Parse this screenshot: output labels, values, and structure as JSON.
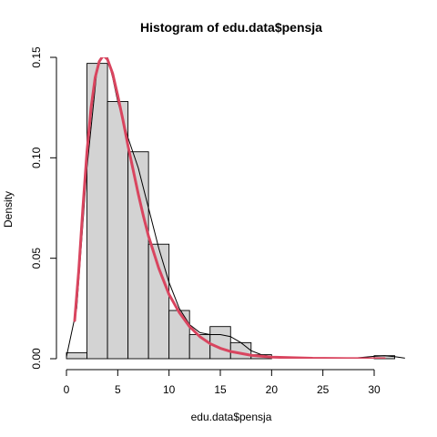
{
  "chart_data": {
    "type": "histogram",
    "title": "Histogram of edu.data$pensja",
    "xlabel": "edu.data$pensja",
    "ylabel": "Density",
    "xlim": [
      0,
      32
    ],
    "ylim": [
      0,
      0.15
    ],
    "x_ticks": [
      0,
      5,
      10,
      15,
      20,
      25,
      30
    ],
    "y_ticks": [
      0.0,
      0.05,
      0.1,
      0.15
    ],
    "x_tick_labels": [
      "0",
      "5",
      "10",
      "15",
      "20",
      "25",
      "30"
    ],
    "y_tick_labels": [
      "0.00",
      "0.05",
      "0.10",
      "0.15"
    ],
    "bin_edges": [
      0,
      2,
      4,
      6,
      8,
      10,
      12,
      14,
      16,
      18,
      20,
      22,
      24,
      26,
      28,
      30,
      32
    ],
    "densities": [
      0.003,
      0.147,
      0.128,
      0.103,
      0.057,
      0.024,
      0.012,
      0.016,
      0.008,
      0.002,
      0,
      0,
      0,
      0,
      0,
      0.0015,
      0
    ],
    "bar_fill": "#d3d3d3",
    "bar_stroke": "#000000",
    "density_curve": {
      "color": "#000000",
      "x": [
        0,
        1,
        2,
        3,
        3.5,
        4,
        4.5,
        5,
        6,
        7,
        8,
        9,
        10,
        11,
        12,
        13,
        14,
        15,
        16,
        17,
        18,
        19,
        20,
        22,
        24,
        26,
        28,
        30,
        31,
        32,
        33
      ],
      "y": [
        0.001,
        0.025,
        0.095,
        0.145,
        0.152,
        0.15,
        0.14,
        0.128,
        0.11,
        0.095,
        0.075,
        0.055,
        0.038,
        0.025,
        0.017,
        0.013,
        0.012,
        0.012,
        0.011,
        0.008,
        0.004,
        0.002,
        0.001,
        0.0005,
        0.0003,
        0.0002,
        0.0003,
        0.0012,
        0.0015,
        0.001,
        0.0003
      ]
    },
    "fitted_curve": {
      "color": "#d9455f",
      "x": [
        0.8,
        1.2,
        1.6,
        2,
        2.4,
        2.8,
        3.2,
        3.6,
        4,
        4.5,
        5,
        5.5,
        6,
        6.5,
        7,
        7.5,
        8,
        9,
        10,
        11,
        12,
        13,
        14,
        15,
        16,
        18,
        20,
        24,
        28,
        31
      ],
      "y": [
        0.019,
        0.044,
        0.075,
        0.103,
        0.125,
        0.14,
        0.148,
        0.151,
        0.149,
        0.142,
        0.131,
        0.119,
        0.106,
        0.094,
        0.082,
        0.071,
        0.061,
        0.045,
        0.032,
        0.023,
        0.016,
        0.011,
        0.0075,
        0.0052,
        0.0036,
        0.0017,
        0.0008,
        0.0002,
        5e-05,
        0.0
      ]
    }
  }
}
